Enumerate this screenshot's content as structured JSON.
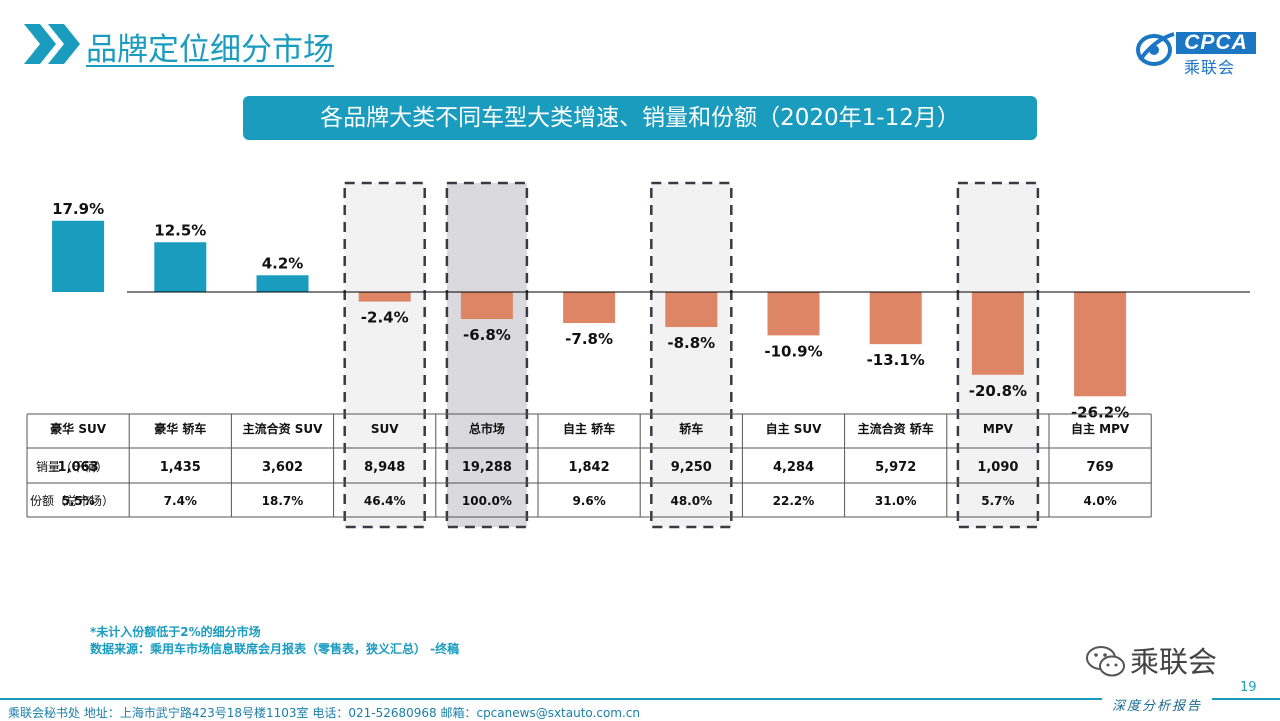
{
  "header": {
    "title": "品牌定位细分市场",
    "logo_text": "CPCA",
    "logo_cn": "乘联会",
    "chevron_icon": "double-chevron-right-icon"
  },
  "subtitle": "各品牌大类不同车型大类增速、销量和份额（2020年1-12月）",
  "chart_data": {
    "type": "bar",
    "categories": [
      "豪华 SUV",
      "豪华 轿车",
      "主流合资 SUV",
      "SUV",
      "总市场",
      "自主 轿车",
      "轿车",
      "自主 SUV",
      "主流合资 轿车",
      "MPV",
      "自主 MPV"
    ],
    "values": [
      17.9,
      12.5,
      4.2,
      -2.4,
      -6.8,
      -7.8,
      -8.8,
      -10.9,
      -13.1,
      -20.8,
      -26.2
    ],
    "value_labels": [
      "17.9%",
      "12.5%",
      "4.2%",
      "-2.4%",
      "-6.8%",
      "-7.8%",
      "-8.8%",
      "-10.9%",
      "-13.1%",
      "-20.8%",
      "-26.2%"
    ],
    "ylim": [
      -27,
      19
    ],
    "highlighted": [
      "SUV",
      "总市场",
      "轿车",
      "MPV"
    ],
    "colors": {
      "positive": "#1a9cbf",
      "negative": "#de8565",
      "highlight_fill": "#f2f2f2",
      "total_fill": "#d9d9de"
    },
    "table": {
      "row_labels": [
        "销量（千辆）",
        "份额（总市场）"
      ],
      "sales": [
        "1,063",
        "1,435",
        "3,602",
        "8,948",
        "19,288",
        "1,842",
        "9,250",
        "4,284",
        "5,972",
        "1,090",
        "769"
      ],
      "share": [
        "5.5%",
        "7.4%",
        "18.7%",
        "46.4%",
        "100.0%",
        "9.6%",
        "48.0%",
        "22.2%",
        "31.0%",
        "5.7%",
        "4.0%"
      ]
    }
  },
  "footnotes": {
    "line1": "*未计入份额低于2%的细分市场",
    "line2": "数据来源：乘用车市场信息联席会月报表（零售表，狭义汇总）  -终稿"
  },
  "wechat": {
    "label": "乘联会",
    "icon": "wechat-icon"
  },
  "page_number": "19",
  "footer": {
    "text": "乘联会秘书处    地址：上海市武宁路423号18号楼1103室    电话：021-52680968    邮箱：cpcanews@sxtauto.com.cn",
    "tag": "深度分析报告"
  }
}
